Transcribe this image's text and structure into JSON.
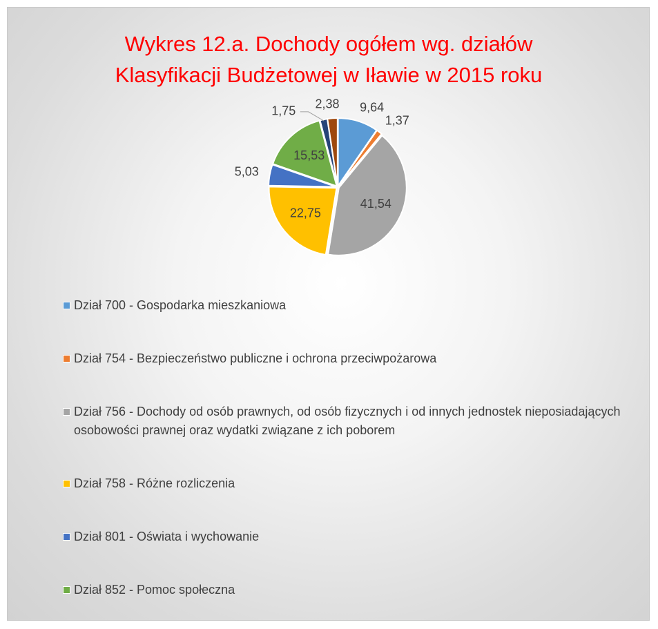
{
  "chart_data": {
    "type": "pie",
    "title": "Wykres 12.a. Dochody ogółem wg. działów Klasyfikacji Budżetowej w Iławie w 2015 roku",
    "categories": [
      "Dział 700 - Gospodarka mieszkaniowa",
      "Dział 754 - Bezpieczeństwo publiczne i ochrona przeciwpożarowa",
      "Dział 756 - Dochody od osób prawnych, od osób fizycznych i od innych jednostek nieposiadających osobowości prawnej oraz wydatki związane z ich poborem",
      "Dział 758 - Różne rozliczenia",
      "Dział 801 - Oświata i wychowanie",
      "Dział 852 - Pomoc społeczna",
      null,
      null
    ],
    "values": [
      9.64,
      1.37,
      41.54,
      22.75,
      5.03,
      15.53,
      1.75,
      2.38
    ],
    "value_labels": [
      "9,64",
      "1,37",
      "41,54",
      "22,75",
      "5,03",
      "15,53",
      "1,75",
      "2,38"
    ],
    "colors": [
      "#5b9bd5",
      "#ed7d31",
      "#a5a5a5",
      "#ffc000",
      "#4472c4",
      "#70ad47",
      "#264478",
      "#9e480e"
    ],
    "legend": "bottom"
  }
}
